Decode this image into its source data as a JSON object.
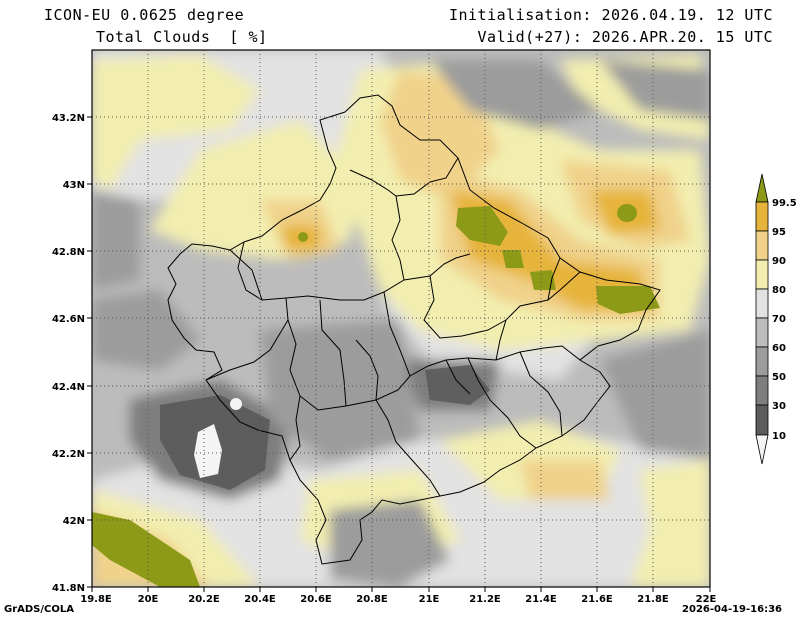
{
  "header": {
    "model": "ICON-EU 0.0625 degree",
    "field": "Total Clouds  [ %]",
    "init": "Initialisation: 2026.04.19. 12 UTC",
    "valid": "Valid(+27): 2026.APR.20. 15 UTC"
  },
  "footer": {
    "credit": "GrADS/COLA",
    "timestamp": "2026-04-19-16:36"
  },
  "map": {
    "lon_ticks": [
      "19.8E",
      "20E",
      "20.2E",
      "20.4E",
      "20.6E",
      "20.8E",
      "21E",
      "21.2E",
      "21.4E",
      "21.6E",
      "21.8E",
      "22E"
    ],
    "lat_ticks": [
      "43.2N",
      "43N",
      "42.8N",
      "42.6N",
      "42.4N",
      "42.2N",
      "42N",
      "41.8N"
    ],
    "lon_range": [
      19.8,
      22.0
    ],
    "lat_range": [
      41.8,
      43.4
    ]
  },
  "colorbar": {
    "labels": [
      "99.5",
      "95",
      "90",
      "80",
      "70",
      "60",
      "50",
      "30",
      "10"
    ],
    "colors": {
      "lt10": "#f4f4f4",
      "c10_30": "#5c5c5c",
      "c30_50": "#7e7e7e",
      "c50_60": "#9c9c9c",
      "c60_70": "#bcbcbc",
      "c70_80": "#e2e2e2",
      "c80_90": "#f2eeb0",
      "c90_95": "#f0d28a",
      "c95_99": "#e6b43a",
      "gt99": "#8c9a18"
    }
  }
}
